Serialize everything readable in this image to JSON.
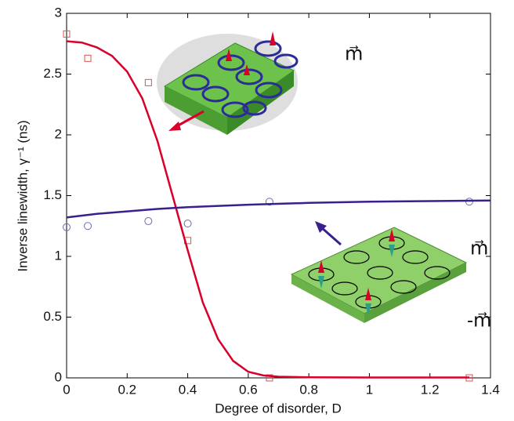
{
  "chart_data": {
    "type": "scatter",
    "x_label": "Degree of disorder, D",
    "y_label": "Inverse linewidth, γ⁻¹ (ns)",
    "xlim": [
      0,
      1.4
    ],
    "xticks": [
      0,
      0.2,
      0.4,
      0.6,
      0.8,
      1,
      1.2,
      1.4
    ],
    "ylim": [
      0,
      3
    ],
    "yticks": [
      0,
      0.5,
      1,
      1.5,
      2,
      2.5,
      3
    ],
    "annotations": [
      "m⃗",
      "m⃗",
      "-m⃗"
    ],
    "series": [
      {
        "mode": "markers",
        "marker": "square",
        "color": "#d9534f",
        "x": [
          0,
          0.07,
          0.27,
          0.4,
          0.67,
          1.33
        ],
        "values": [
          2.83,
          2.63,
          2.43,
          1.13,
          0.0,
          0.0
        ]
      },
      {
        "mode": "markers",
        "marker": "circle",
        "color": "#6b6bb5",
        "x": [
          0,
          0.07,
          0.27,
          0.4,
          0.67,
          1.33
        ],
        "values": [
          1.24,
          1.25,
          1.29,
          1.27,
          1.45,
          1.45
        ]
      },
      {
        "mode": "line",
        "color": "#d9002a",
        "x": [
          0,
          0.05,
          0.1,
          0.15,
          0.2,
          0.25,
          0.3,
          0.35,
          0.4,
          0.45,
          0.5,
          0.55,
          0.6,
          0.65,
          0.7,
          0.8,
          1,
          1.2,
          1.33
        ],
        "values": [
          2.77,
          2.76,
          2.72,
          2.65,
          2.52,
          2.3,
          1.95,
          1.5,
          1.05,
          0.62,
          0.32,
          0.14,
          0.05,
          0.02,
          0.01,
          0.005,
          0.003,
          0.003,
          0.003
        ]
      },
      {
        "mode": "line",
        "color": "#3a1f8f",
        "x": [
          0,
          0.1,
          0.2,
          0.3,
          0.4,
          0.6,
          0.8,
          1,
          1.2,
          1.4
        ],
        "values": [
          1.32,
          1.35,
          1.37,
          1.39,
          1.405,
          1.425,
          1.44,
          1.45,
          1.455,
          1.46
        ]
      }
    ]
  }
}
